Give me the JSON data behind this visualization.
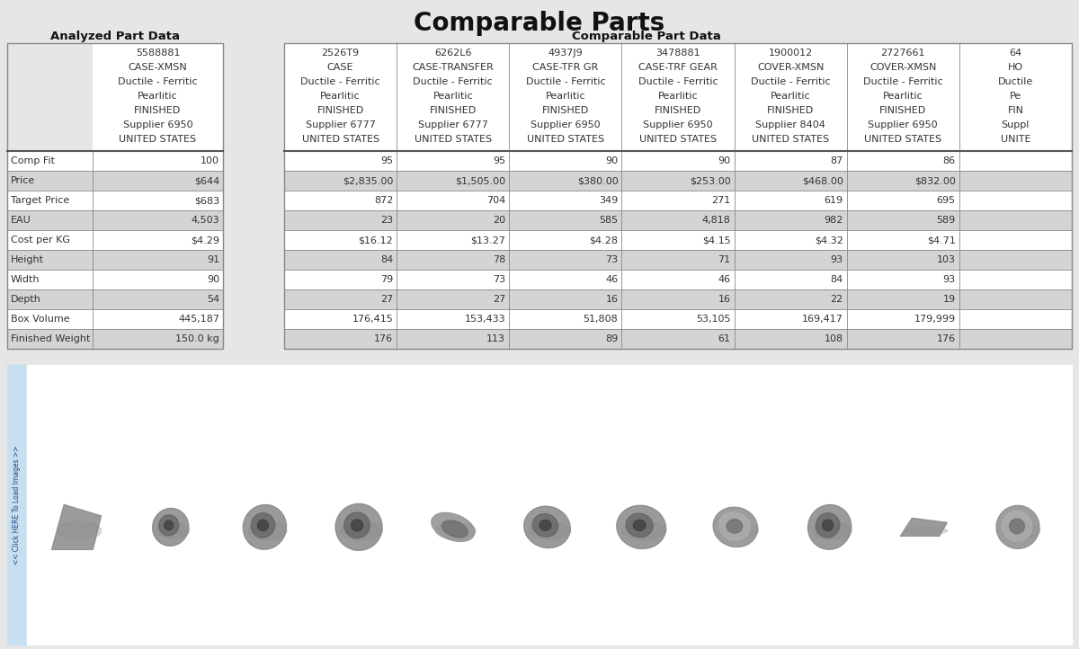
{
  "title": "Comparable Parts",
  "analyzed_header": "Analyzed Part Data",
  "comparable_header": "Comparable Part Data",
  "bg_color": "#e6e6e6",
  "shade_color": "#d4d4d4",
  "white_color": "#ffffff",
  "cell_text_color": "#333333",
  "label_text_color": "#333333",
  "header_text_color": "#111111",
  "title_color": "#111111",
  "bottom_panel_white": "#ffffff",
  "bottom_panel_sidebar": "#c8dff0",
  "sidebar_border": "#8ab0cc",
  "sidebar_text": "<< Click HERE To Load Images >>",
  "row_labels": [
    "Comp Fit",
    "Price",
    "Target Price",
    "EAU",
    "Cost per KG",
    "Height",
    "Width",
    "Depth",
    "Box Volume",
    "Finished Weight"
  ],
  "analyzed_part": {
    "part_id": "5588881",
    "name": "CASE-XMSN",
    "material1": "Ductile - Ferritic",
    "material2": "Pearlitic",
    "finish": "FINISHED",
    "supplier": "Supplier 6950",
    "country": "UNITED STATES",
    "values": [
      "100",
      "$644",
      "$683",
      "4,503",
      "$4.29",
      "91",
      "90",
      "54",
      "445,187",
      "150.0 kg"
    ]
  },
  "comparable_parts": [
    {
      "part_id": "2526T9",
      "name": "CASE",
      "material1": "Ductile - Ferritic",
      "material2": "Pearlitic",
      "finish": "FINISHED",
      "supplier": "Supplier 6777",
      "country": "UNITED STATES",
      "values": [
        "95",
        "$2,835.00",
        "872",
        "23",
        "$16.12",
        "84",
        "79",
        "27",
        "176,415",
        "176"
      ]
    },
    {
      "part_id": "6262L6",
      "name": "CASE-TRANSFER",
      "material1": "Ductile - Ferritic",
      "material2": "Pearlitic",
      "finish": "FINISHED",
      "supplier": "Supplier 6777",
      "country": "UNITED STATES",
      "values": [
        "95",
        "$1,505.00",
        "704",
        "20",
        "$13.27",
        "78",
        "73",
        "27",
        "153,433",
        "113"
      ]
    },
    {
      "part_id": "4937J9",
      "name": "CASE-TFR GR",
      "material1": "Ductile - Ferritic",
      "material2": "Pearlitic",
      "finish": "FINISHED",
      "supplier": "Supplier 6950",
      "country": "UNITED STATES",
      "values": [
        "90",
        "$380.00",
        "349",
        "585",
        "$4.28",
        "73",
        "46",
        "16",
        "51,808",
        "89"
      ]
    },
    {
      "part_id": "3478881",
      "name": "CASE-TRF GEAR",
      "material1": "Ductile - Ferritic",
      "material2": "Pearlitic",
      "finish": "FINISHED",
      "supplier": "Supplier 6950",
      "country": "UNITED STATES",
      "values": [
        "90",
        "$253.00",
        "271",
        "4,818",
        "$4.15",
        "71",
        "46",
        "16",
        "53,105",
        "61"
      ]
    },
    {
      "part_id": "1900012",
      "name": "COVER-XMSN",
      "material1": "Ductile - Ferritic",
      "material2": "Pearlitic",
      "finish": "FINISHED",
      "supplier": "Supplier 8404",
      "country": "UNITED STATES",
      "values": [
        "87",
        "$468.00",
        "619",
        "982",
        "$4.32",
        "93",
        "84",
        "22",
        "169,417",
        "108"
      ]
    },
    {
      "part_id": "2727661",
      "name": "COVER-XMSN",
      "material1": "Ductile - Ferritic",
      "material2": "Pearlitic",
      "finish": "FINISHED",
      "supplier": "Supplier 6950",
      "country": "UNITED STATES",
      "values": [
        "86",
        "$832.00",
        "695",
        "589",
        "$4.71",
        "103",
        "93",
        "19",
        "179,999",
        "176"
      ]
    },
    {
      "part_id": "64",
      "name": "HO",
      "material1": "Ductile",
      "material2": "Pe",
      "finish": "FIN",
      "supplier": "Suppl",
      "country": "UNITE",
      "values": [
        "",
        "",
        "",
        "",
        "",
        "",
        "",
        "",
        "",
        ""
      ]
    }
  ]
}
